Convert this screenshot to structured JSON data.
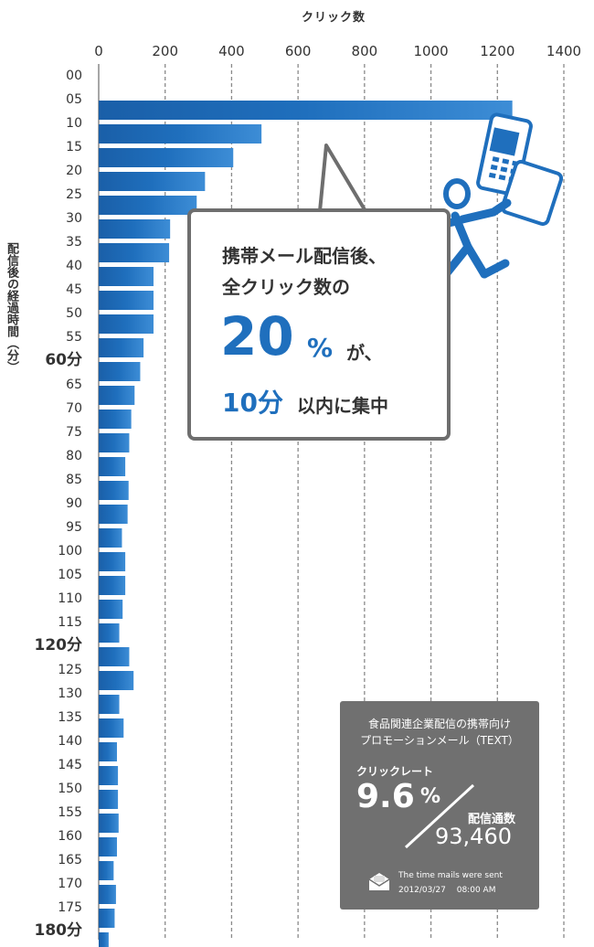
{
  "chart_data": {
    "type": "bar",
    "orientation": "horizontal",
    "xlabel": "クリック数",
    "ylabel": "配信後の経過時間（分）",
    "xlim": [
      0,
      1400
    ],
    "xticks": [
      0,
      200,
      400,
      600,
      800,
      1000,
      1200,
      1400
    ],
    "categories": [
      "00",
      "05",
      "10",
      "15",
      "20",
      "25",
      "30",
      "35",
      "40",
      "45",
      "50",
      "55",
      "60分",
      "65",
      "70",
      "75",
      "80",
      "85",
      "90",
      "95",
      "100",
      "105",
      "110",
      "115",
      "120分",
      "125",
      "130",
      "135",
      "140",
      "145",
      "150",
      "155",
      "160",
      "165",
      "170",
      "175",
      "180分"
    ],
    "values": [
      0,
      1245,
      490,
      405,
      320,
      295,
      215,
      212,
      165,
      165,
      165,
      135,
      125,
      108,
      98,
      92,
      80,
      90,
      87,
      70,
      80,
      80,
      72,
      62,
      92,
      105,
      62,
      75,
      55,
      58,
      58,
      60,
      55,
      45,
      52,
      48,
      30
    ],
    "major_categories": [
      "60分",
      "120分",
      "180分"
    ],
    "grid": "vertical-dashed",
    "bar_color": "#1f6fbd"
  },
  "callout": {
    "line1": "携帯メール配信後、",
    "line2": "全クリック数の",
    "pct_value": "20",
    "pct_symbol": "%",
    "ga": "が、",
    "ten_min": "10分",
    "within": "以内に集中"
  },
  "infobox": {
    "title1": "食品関連企業配信の携帯向け",
    "title2": "プロモーションメール（TEXT）",
    "rate_label": "クリックレート",
    "rate_value": "9.6",
    "rate_symbol": "%",
    "delivered_label": "配信通数",
    "delivered_value": "93,460",
    "sent_label": "The time mails were sent",
    "sent_time": "2012/03/27　 08:00 AM"
  },
  "colors": {
    "accent": "#1f6fbd",
    "box_gray": "#707070",
    "border_gray": "#6e6e6e"
  },
  "icons": [
    "mobile-phone-icon",
    "running-man-icon",
    "mail-icon"
  ]
}
